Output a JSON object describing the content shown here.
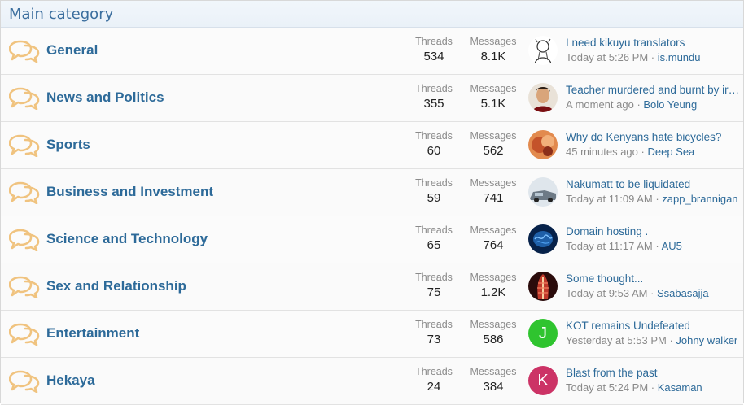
{
  "category": {
    "title": "Main category"
  },
  "labels": {
    "threads": "Threads",
    "messages": "Messages"
  },
  "colors": {
    "link": "#2d6a99",
    "header_text": "#3b6e9e",
    "icon": "#f0c37f"
  },
  "forums": [
    {
      "title": "General",
      "threads": "534",
      "messages": "8.1K",
      "latest": {
        "title": "I need kikuyu translators",
        "time": "Today at 5:26 PM",
        "sep": " · ",
        "user": "is.mundu"
      },
      "avatar": {
        "type": "image",
        "name": "sketch-avatar"
      }
    },
    {
      "title": "News and Politics",
      "threads": "355",
      "messages": "5.1K",
      "latest": {
        "title": "Teacher murdered and burnt by irate...",
        "time": "A moment ago",
        "sep": " · ",
        "user": "Bolo Yeung"
      },
      "avatar": {
        "type": "image",
        "name": "portrait-avatar"
      }
    },
    {
      "title": "Sports",
      "threads": "60",
      "messages": "562",
      "latest": {
        "title": "Why do Kenyans hate bicycles?",
        "time": "45 minutes ago",
        "sep": " · ",
        "user": "Deep Sea"
      },
      "avatar": {
        "type": "image",
        "name": "food-avatar"
      }
    },
    {
      "title": "Business and Investment",
      "threads": "59",
      "messages": "741",
      "latest": {
        "title": "Nakumatt to be liquidated",
        "time": "Today at 11:09 AM",
        "sep": " · ",
        "user": "zapp_brannigan"
      },
      "avatar": {
        "type": "image",
        "name": "car-avatar"
      }
    },
    {
      "title": "Science and Technology",
      "threads": "65",
      "messages": "764",
      "latest": {
        "title": "Domain hosting .",
        "time": "Today at 11:17 AM",
        "sep": " · ",
        "user": "AU5"
      },
      "avatar": {
        "type": "image",
        "name": "brain-avatar"
      }
    },
    {
      "title": "Sex and Relationship",
      "threads": "75",
      "messages": "1.2K",
      "latest": {
        "title": "Some thought...",
        "time": "Today at 9:53 AM",
        "sep": " · ",
        "user": "Ssabasajja"
      },
      "avatar": {
        "type": "image",
        "name": "anatomy-avatar"
      }
    },
    {
      "title": "Entertainment",
      "threads": "73",
      "messages": "586",
      "latest": {
        "title": "KOT remains Undefeated",
        "time": "Yesterday at 5:53 PM",
        "sep": " · ",
        "user": "Johny walker"
      },
      "avatar": {
        "type": "letter",
        "letter": "J",
        "color": "#2fc42f"
      }
    },
    {
      "title": "Hekaya",
      "threads": "24",
      "messages": "384",
      "latest": {
        "title": "Blast from the past",
        "time": "Today at 5:24 PM",
        "sep": " · ",
        "user": "Kasaman"
      },
      "avatar": {
        "type": "letter",
        "letter": "K",
        "color": "#cc3366"
      }
    }
  ]
}
